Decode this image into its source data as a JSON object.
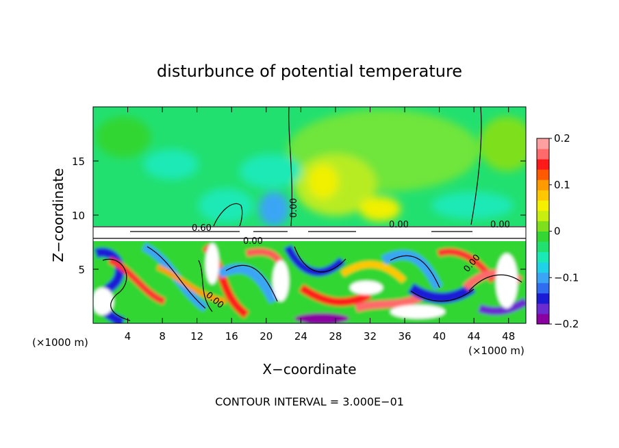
{
  "chart_data": {
    "type": "heatmap",
    "title": "disturbunce of potential temperature",
    "xlabel": "X−coordinate",
    "ylabel": "Z−coordinate",
    "x_unit_left": "(×1000 m)",
    "x_unit_right": "(×1000 m)",
    "xlim": [
      0,
      50
    ],
    "ylim": [
      0,
      20
    ],
    "x_ticks": [
      4,
      8,
      12,
      16,
      20,
      24,
      28,
      32,
      36,
      40,
      44,
      48
    ],
    "x_tick_labels": [
      "4",
      "8",
      "12",
      "16",
      "20",
      "24",
      "28",
      "32",
      "36",
      "40",
      "44",
      "48"
    ],
    "y_ticks": [
      5,
      10,
      15
    ],
    "y_tick_labels": [
      "5",
      "10",
      "15"
    ],
    "colorbar": {
      "range": [
        -0.2,
        0.2
      ],
      "ticks": [
        0.2,
        0.1,
        0,
        -0.1,
        -0.2
      ],
      "tick_labels": [
        "0.2",
        "0.1",
        "0",
        "−0.1",
        "−0.2"
      ],
      "colors": [
        "#8b00a0",
        "#6a2bd0",
        "#1b1bd6",
        "#2f6cf0",
        "#3aa5f5",
        "#20d2e8",
        "#1be9b5",
        "#22e070",
        "#33d633",
        "#7ee01c",
        "#c8ee10",
        "#f4f000",
        "#ffc800",
        "#ff9a00",
        "#ff5a00",
        "#ff1a1a",
        "#ff6a6a",
        "#ffa0a0"
      ]
    },
    "contour_labels": [
      "0.00",
      "0.00",
      "0.00",
      "0.00",
      "0.60",
      "0.00",
      "0.00"
    ],
    "footer": "CONTOUR INTERVAL = 3.000E−01"
  }
}
